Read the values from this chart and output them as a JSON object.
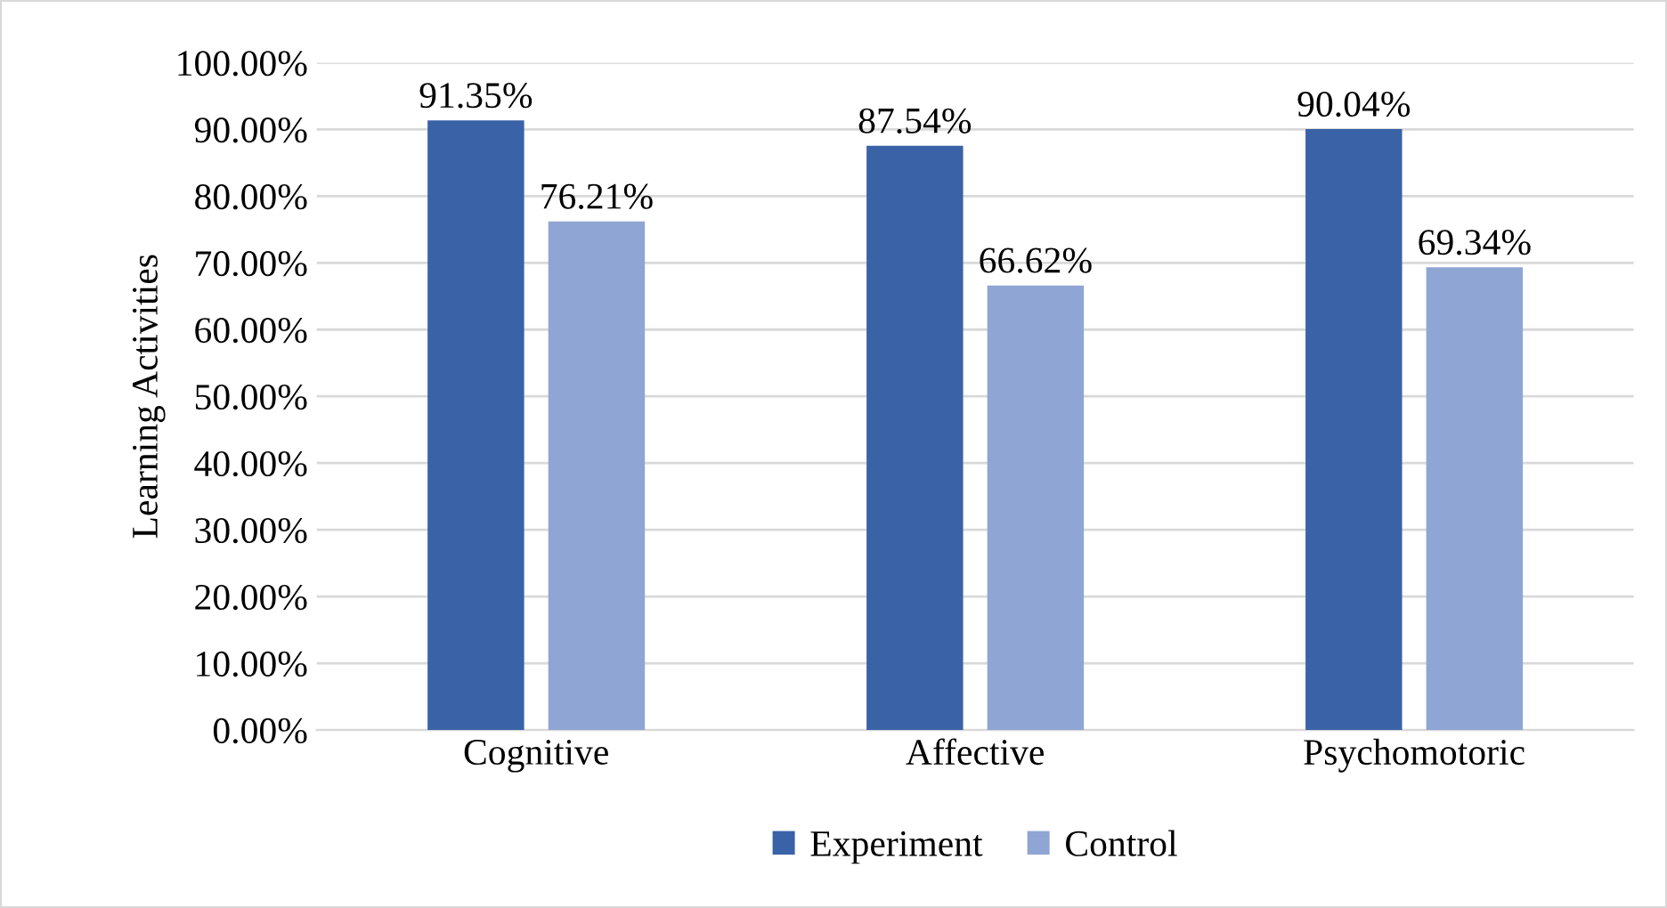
{
  "chart_data": {
    "type": "bar",
    "ylabel": "Learning Activities",
    "categories": [
      "Cognitive",
      "Affective",
      "Psychomotoric"
    ],
    "series": [
      {
        "name": "Experiment",
        "color": "#3a62a7",
        "values": [
          91.35,
          87.54,
          90.04
        ],
        "value_labels": [
          "91.35%",
          "87.54%",
          "90.04%"
        ]
      },
      {
        "name": "Control",
        "color": "#8fa5d4",
        "values": [
          76.21,
          66.62,
          69.34
        ],
        "value_labels": [
          "76.21%",
          "66.62%",
          "69.34%"
        ]
      }
    ],
    "ylim": [
      0,
      100
    ],
    "yticks": [
      {
        "value": 0,
        "label": "0.00%"
      },
      {
        "value": 10,
        "label": "10.00%"
      },
      {
        "value": 20,
        "label": "20.00%"
      },
      {
        "value": 30,
        "label": "30.00%"
      },
      {
        "value": 40,
        "label": "40.00%"
      },
      {
        "value": 50,
        "label": "50.00%"
      },
      {
        "value": 60,
        "label": "60.00%"
      },
      {
        "value": 70,
        "label": "70.00%"
      },
      {
        "value": 80,
        "label": "80.00%"
      },
      {
        "value": 90,
        "label": "90.00%"
      },
      {
        "value": 100,
        "label": "100.00%"
      }
    ],
    "grid": "y",
    "legend": "bottom"
  }
}
